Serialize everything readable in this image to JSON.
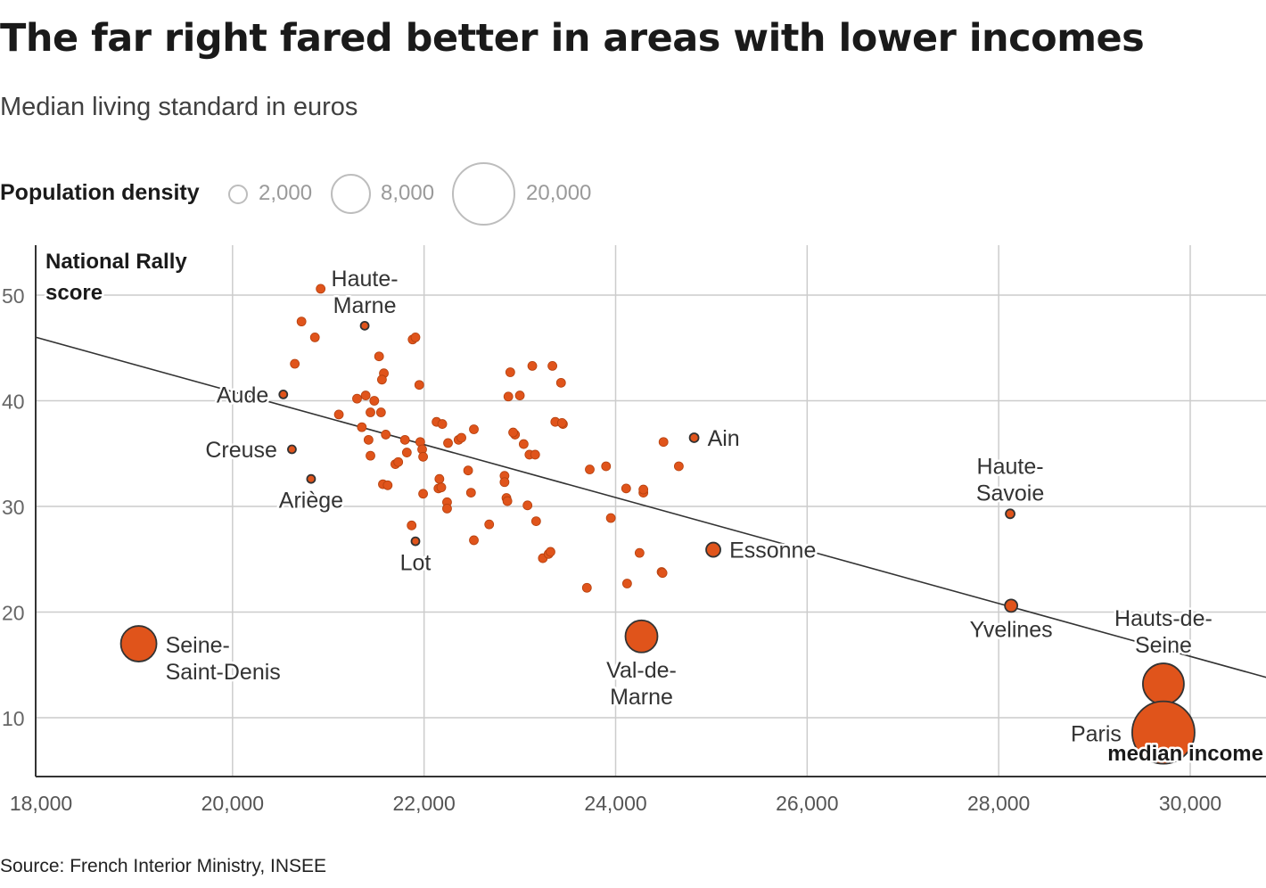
{
  "title": "The far right fared better in areas with lower incomes",
  "subtitle": "Median living standard in euros",
  "legend": {
    "title": "Population density",
    "items": [
      {
        "value": 2000,
        "label": "2,000"
      },
      {
        "value": 8000,
        "label": "8,000"
      },
      {
        "value": 20000,
        "label": "20,000"
      }
    ]
  },
  "source": "Source: French Interior Ministry, INSEE",
  "colors": {
    "dot": "#e0541b",
    "dot_stroke": "#b5410f",
    "outline": "#333333",
    "grid": "#cccccc",
    "trend": "#333333"
  },
  "chart_data": {
    "type": "scatter",
    "xlabel": "median income",
    "ylabel": [
      "National Rally",
      "score"
    ],
    "xlim": [
      17950,
      30800
    ],
    "ylim": [
      4,
      55
    ],
    "xticks": [
      18000,
      20000,
      22000,
      24000,
      26000,
      28000,
      30000
    ],
    "xtick_labels": [
      "18,000",
      "20,000",
      "22,000",
      "24,000",
      "26,000",
      "28,000",
      "30,000"
    ],
    "yticks": [
      10,
      20,
      30,
      40,
      50
    ],
    "ytick_labels": [
      "10",
      "20",
      "30",
      "40",
      "50"
    ],
    "trend_line": [
      [
        17950,
        46.0
      ],
      [
        30800,
        13.8
      ]
    ],
    "labeled_points": [
      {
        "name": "Haute-Marne",
        "label": [
          "Haute-",
          "Marne"
        ],
        "x": 21380,
        "y": 47.1,
        "r": 4.5,
        "filled": false,
        "label_pos": "above"
      },
      {
        "name": "Aude",
        "label": [
          "Aude"
        ],
        "x": 20530,
        "y": 40.6,
        "r": 4.5,
        "filled": false,
        "label_pos": "left"
      },
      {
        "name": "Creuse",
        "label": [
          "Creuse"
        ],
        "x": 20620,
        "y": 35.4,
        "r": 4.5,
        "filled": false,
        "label_pos": "left"
      },
      {
        "name": "Ariège",
        "label": [
          "Ariège"
        ],
        "x": 20820,
        "y": 32.6,
        "r": 4.5,
        "filled": false,
        "label_pos": "below"
      },
      {
        "name": "Lot",
        "label": [
          "Lot"
        ],
        "x": 21910,
        "y": 26.7,
        "r": 4.5,
        "filled": false,
        "label_pos": "below"
      },
      {
        "name": "Ain",
        "label": [
          "Ain"
        ],
        "x": 24820,
        "y": 36.5,
        "r": 5,
        "filled": false,
        "label_pos": "right"
      },
      {
        "name": "Essonne",
        "label": [
          "Essonne"
        ],
        "x": 25020,
        "y": 25.9,
        "r": 8,
        "filled": true,
        "label_pos": "right"
      },
      {
        "name": "Haute-Savoie",
        "label": [
          "Haute-",
          "Savoie"
        ],
        "x": 28120,
        "y": 29.3,
        "r": 5,
        "filled": false,
        "label_pos": "above"
      },
      {
        "name": "Yvelines",
        "label": [
          "Yvelines"
        ],
        "x": 28130,
        "y": 20.6,
        "r": 7,
        "filled": true,
        "label_pos": "below"
      },
      {
        "name": "Seine-Saint-Denis",
        "label": [
          "Seine-",
          "Saint-Denis"
        ],
        "x": 19020,
        "y": 17.0,
        "r": 20,
        "filled": true,
        "label_pos": "right"
      },
      {
        "name": "Val-de-Marne",
        "label": [
          "Val-de-",
          "Marne"
        ],
        "x": 24270,
        "y": 17.7,
        "r": 18,
        "filled": true,
        "label_pos": "below"
      },
      {
        "name": "Hauts-de-Seine",
        "label": [
          "Hauts-de-",
          "Seine"
        ],
        "x": 29720,
        "y": 13.2,
        "r": 23,
        "filled": true,
        "label_pos": "above"
      },
      {
        "name": "Paris",
        "label": [
          "Paris"
        ],
        "x": 29720,
        "y": 8.6,
        "r": 35,
        "filled": true,
        "label_pos": "left"
      }
    ],
    "points": [
      [
        20920,
        50.6
      ],
      [
        20720,
        47.5
      ],
      [
        20860,
        46.0
      ],
      [
        20650,
        43.5
      ],
      [
        21110,
        38.7
      ],
      [
        21300,
        40.2
      ],
      [
        21390,
        40.5
      ],
      [
        21480,
        40.0
      ],
      [
        21440,
        38.9
      ],
      [
        21550,
        38.9
      ],
      [
        21350,
        37.5
      ],
      [
        21420,
        36.3
      ],
      [
        21600,
        36.8
      ],
      [
        21440,
        34.8
      ],
      [
        21570,
        32.1
      ],
      [
        21620,
        32.0
      ],
      [
        21700,
        34.0
      ],
      [
        21730,
        34.2
      ],
      [
        21530,
        44.2
      ],
      [
        21580,
        42.6
      ],
      [
        21560,
        42.0
      ],
      [
        21880,
        45.8
      ],
      [
        21910,
        46.0
      ],
      [
        21950,
        41.5
      ],
      [
        21800,
        36.3
      ],
      [
        21820,
        35.1
      ],
      [
        21960,
        36.1
      ],
      [
        21980,
        35.4
      ],
      [
        21990,
        34.7
      ],
      [
        21870,
        28.2
      ],
      [
        21990,
        31.2
      ],
      [
        22130,
        38.0
      ],
      [
        22190,
        37.8
      ],
      [
        22250,
        36.0
      ],
      [
        22360,
        36.3
      ],
      [
        22390,
        36.5
      ],
      [
        22520,
        37.3
      ],
      [
        22160,
        32.6
      ],
      [
        22150,
        31.7
      ],
      [
        22180,
        31.8
      ],
      [
        22240,
        30.4
      ],
      [
        22240,
        29.8
      ],
      [
        22460,
        33.4
      ],
      [
        22490,
        31.3
      ],
      [
        22520,
        26.8
      ],
      [
        22680,
        28.3
      ],
      [
        22840,
        32.9
      ],
      [
        22840,
        32.3
      ],
      [
        22860,
        30.8
      ],
      [
        22870,
        30.5
      ],
      [
        22880,
        40.4
      ],
      [
        22900,
        42.7
      ],
      [
        22950,
        36.8
      ],
      [
        22930,
        37.0
      ],
      [
        23000,
        40.5
      ],
      [
        23040,
        35.9
      ],
      [
        23100,
        34.9
      ],
      [
        23160,
        34.9
      ],
      [
        23130,
        43.3
      ],
      [
        23080,
        30.1
      ],
      [
        23170,
        28.6
      ],
      [
        23240,
        25.1
      ],
      [
        23300,
        25.5
      ],
      [
        23320,
        25.7
      ],
      [
        23340,
        43.3
      ],
      [
        23370,
        38.0
      ],
      [
        23450,
        37.8
      ],
      [
        23440,
        37.9
      ],
      [
        23430,
        41.7
      ],
      [
        23700,
        22.3
      ],
      [
        23730,
        33.5
      ],
      [
        23900,
        33.8
      ],
      [
        23950,
        28.9
      ],
      [
        24110,
        31.7
      ],
      [
        24120,
        22.7
      ],
      [
        24250,
        25.6
      ],
      [
        24290,
        31.3
      ],
      [
        24290,
        31.6
      ],
      [
        24500,
        36.1
      ],
      [
        24480,
        23.8
      ],
      [
        24490,
        23.7
      ],
      [
        24660,
        33.8
      ]
    ]
  }
}
